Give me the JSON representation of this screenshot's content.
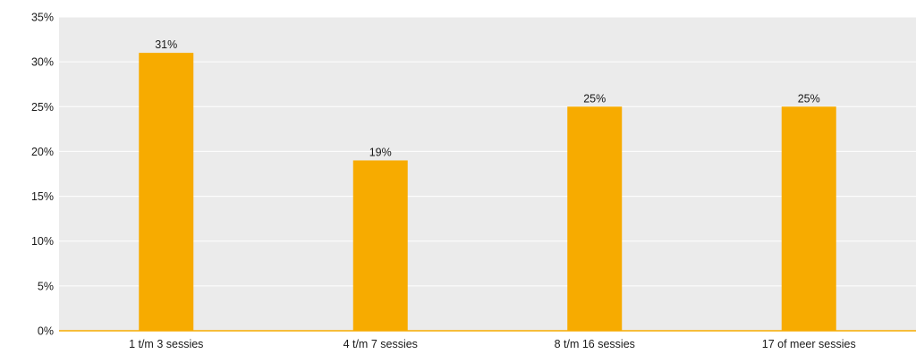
{
  "chart_data": {
    "type": "bar",
    "categories": [
      "1 t/m 3 sessies",
      "4 t/m 7 sessies",
      "8 t/m 16 sessies",
      "17 of meer sessies"
    ],
    "values": [
      31,
      19,
      25,
      25
    ],
    "data_labels": [
      "31%",
      "19%",
      "25%",
      "25%"
    ],
    "title": "",
    "xlabel": "",
    "ylabel": "",
    "ylim": [
      0,
      35
    ],
    "y_ticks": [
      0,
      5,
      10,
      15,
      20,
      25,
      30,
      35
    ],
    "y_tick_labels": [
      "0%",
      "5%",
      "10%",
      "15%",
      "20%",
      "25%",
      "30%",
      "35%"
    ],
    "grid": true,
    "legend": "none",
    "colors": {
      "bar": "#F7AB00",
      "plot_background": "#EBEBEB",
      "gridline": "#FFFFFF",
      "baseline": "#F7AB00"
    }
  }
}
